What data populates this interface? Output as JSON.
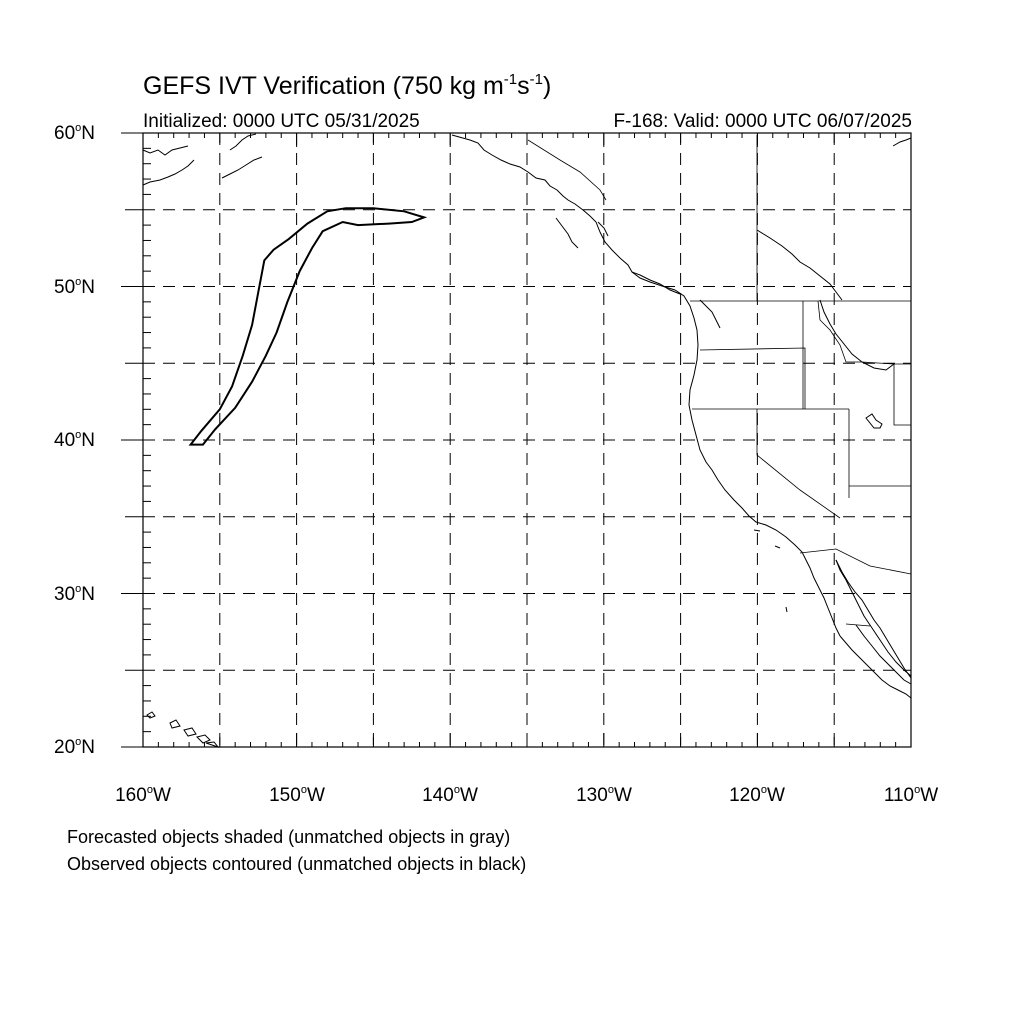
{
  "title": {
    "prefix": "GEFS IVT Verification (750 kg m",
    "sup1": "-1",
    "mid": "s",
    "sup2": "-1",
    "suffix": ")"
  },
  "subtitle_left": "Initialized: 0000 UTC 05/31/2025",
  "subtitle_right": "F-168: Valid: 0000 UTC 06/07/2025",
  "degree_symbol": "o",
  "lat_labels": [
    {
      "value": "60",
      "hemi": "N"
    },
    {
      "value": "50",
      "hemi": "N"
    },
    {
      "value": "40",
      "hemi": "N"
    },
    {
      "value": "30",
      "hemi": "N"
    },
    {
      "value": "20",
      "hemi": "N"
    }
  ],
  "lon_labels": [
    {
      "value": "160",
      "hemi": "W"
    },
    {
      "value": "150",
      "hemi": "W"
    },
    {
      "value": "140",
      "hemi": "W"
    },
    {
      "value": "130",
      "hemi": "W"
    },
    {
      "value": "120",
      "hemi": "W"
    },
    {
      "value": "110",
      "hemi": "W"
    }
  ],
  "notes": [
    "Forecasted objects shaded (unmatched objects in gray)",
    "Observed objects contoured (unmatched objects in black)"
  ],
  "map_extent": {
    "lon_min": -160,
    "lon_max": -110,
    "lat_min": 20,
    "lat_max": 60
  },
  "gridline_interval_deg": 5,
  "observed_object": {
    "status": "unmatched",
    "color": "#000000",
    "outline": [
      [
        -156.9,
        39.7
      ],
      [
        -156.2,
        40.6
      ],
      [
        -155.0,
        42.0
      ],
      [
        -154.2,
        43.5
      ],
      [
        -153.5,
        45.5
      ],
      [
        -152.9,
        47.5
      ],
      [
        -152.5,
        49.6
      ],
      [
        -152.1,
        51.7
      ],
      [
        -151.5,
        52.4
      ],
      [
        -150.5,
        53.1
      ],
      [
        -149.3,
        54.1
      ],
      [
        -148.0,
        54.9
      ],
      [
        -146.8,
        55.1
      ],
      [
        -145.0,
        55.1
      ],
      [
        -143.0,
        54.9
      ],
      [
        -141.7,
        54.5
      ],
      [
        -142.5,
        54.2
      ],
      [
        -144.0,
        54.1
      ],
      [
        -146.0,
        54.0
      ],
      [
        -147.0,
        54.2
      ],
      [
        -148.3,
        53.6
      ],
      [
        -149.0,
        52.5
      ],
      [
        -149.8,
        51.0
      ],
      [
        -150.6,
        49.0
      ],
      [
        -151.3,
        47.0
      ],
      [
        -152.0,
        45.5
      ],
      [
        -152.9,
        43.8
      ],
      [
        -154.0,
        42.1
      ],
      [
        -155.3,
        40.7
      ],
      [
        -156.1,
        39.7
      ]
    ]
  }
}
